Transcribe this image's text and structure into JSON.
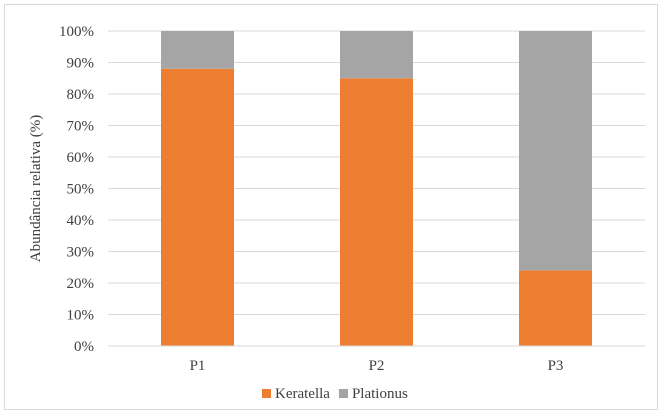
{
  "chart_data": {
    "type": "bar",
    "stacked": true,
    "percent": true,
    "categories": [
      "P1",
      "P2",
      "P3"
    ],
    "series": [
      {
        "name": "Keratella",
        "values": [
          88,
          85,
          24
        ],
        "color": "#ED7D31"
      },
      {
        "name": "Plationus",
        "values": [
          12,
          15,
          76
        ],
        "color": "#A5A5A5"
      }
    ],
    "title": "",
    "xlabel": "",
    "ylabel": "Abundância relativa (%)",
    "ylim": [
      0,
      100
    ],
    "yticks": [
      "0%",
      "10%",
      "20%",
      "30%",
      "40%",
      "50%",
      "60%",
      "70%",
      "80%",
      "90%",
      "100%"
    ],
    "grid": true,
    "legend_position": "bottom"
  }
}
